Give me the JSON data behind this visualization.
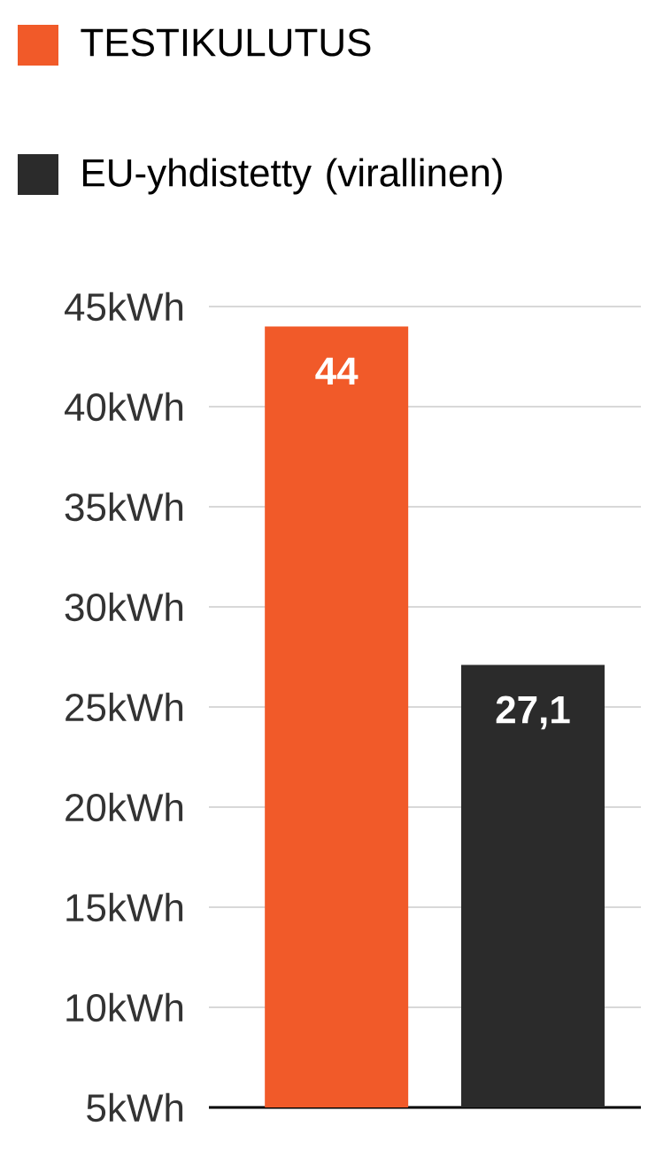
{
  "chart_data": {
    "type": "bar",
    "categories": [
      null,
      null
    ],
    "series": [
      {
        "name": "TESTIKULUTUS",
        "color": "#f15a29",
        "values": [
          44,
          null
        ],
        "value_labels": [
          "44",
          null
        ]
      },
      {
        "name": "EU-yhdistetty (virallinen)",
        "color": "#2b2b2b",
        "values": [
          null,
          27.1
        ],
        "value_labels": [
          null,
          "27,1"
        ]
      }
    ],
    "ylim": [
      5,
      45
    ],
    "yticks": [
      {
        "value": 5,
        "label": "5kWh"
      },
      {
        "value": 10,
        "label": "10kWh"
      },
      {
        "value": 15,
        "label": "15kWh"
      },
      {
        "value": 20,
        "label": "20kWh"
      },
      {
        "value": 25,
        "label": "25kWh"
      },
      {
        "value": 30,
        "label": "30kWh"
      },
      {
        "value": 35,
        "label": "35kWh"
      },
      {
        "value": 40,
        "label": "40kWh"
      },
      {
        "value": 45,
        "label": "45kWh"
      }
    ],
    "grid": "y",
    "legend": "top",
    "tick_labels": "y"
  }
}
